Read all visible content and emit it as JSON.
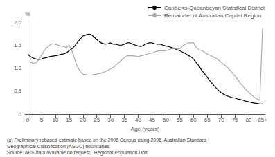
{
  "chart_data": {
    "type": "line",
    "xlabel": "Age (years)",
    "ylabel": "%",
    "xlim": [
      -1,
      86
    ],
    "xticks": [
      0,
      5,
      10,
      15,
      20,
      25,
      30,
      35,
      40,
      45,
      50,
      55,
      60,
      65,
      70,
      75,
      80,
      {
        "value": 85,
        "label": "85+"
      }
    ],
    "ylim": [
      0,
      2.0
    ],
    "yticks": [
      0,
      0.5,
      {
        "value": 1.0,
        "label": "1.0"
      },
      1.5,
      {
        "value": 2.0,
        "label": "2.0"
      }
    ],
    "grid": false,
    "legend": "upper right",
    "annotations": [
      "(a) Preliminary rebased estimate based on the 2006 Census using 2006, Australian Standard",
      "Geographical Classification (ASGC) boundaries.",
      "Source: ABS data available on request,  Regional Population Unit."
    ],
    "series": [
      {
        "name": "Canberra-Queanbeyan Statistical District",
        "color": "#000000",
        "x": [
          0,
          1,
          2,
          3,
          4,
          5,
          6,
          7,
          8,
          9,
          10,
          11,
          12,
          13,
          14,
          15,
          16,
          17,
          18,
          19,
          20,
          21,
          22,
          23,
          24,
          25,
          26,
          27,
          28,
          29,
          30,
          31,
          32,
          33,
          34,
          35,
          36,
          37,
          38,
          39,
          40,
          41,
          42,
          43,
          44,
          45,
          46,
          47,
          48,
          49,
          50,
          51,
          52,
          53,
          54,
          55,
          56,
          57,
          58,
          59,
          60,
          61,
          62,
          63,
          64,
          65,
          66,
          67,
          68,
          69,
          70,
          71,
          72,
          73,
          74,
          75,
          76,
          77,
          78,
          79,
          80,
          81,
          82,
          83,
          84,
          85
        ],
        "values": [
          1.3,
          1.25,
          1.22,
          1.2,
          1.18,
          1.2,
          1.22,
          1.23,
          1.25,
          1.26,
          1.27,
          1.28,
          1.3,
          1.31,
          1.33,
          1.38,
          1.42,
          1.48,
          1.56,
          1.63,
          1.7,
          1.72,
          1.74,
          1.73,
          1.68,
          1.62,
          1.57,
          1.54,
          1.52,
          1.53,
          1.55,
          1.52,
          1.52,
          1.5,
          1.5,
          1.52,
          1.55,
          1.55,
          1.52,
          1.5,
          1.48,
          1.47,
          1.5,
          1.53,
          1.55,
          1.55,
          1.53,
          1.52,
          1.52,
          1.5,
          1.48,
          1.47,
          1.45,
          1.43,
          1.4,
          1.38,
          1.35,
          1.32,
          1.28,
          1.25,
          1.2,
          1.12,
          1.05,
          0.95,
          0.88,
          0.8,
          0.72,
          0.65,
          0.58,
          0.52,
          0.47,
          0.43,
          0.4,
          0.38,
          0.36,
          0.35,
          0.33,
          0.32,
          0.3,
          0.28,
          0.27,
          0.25,
          0.24,
          0.23,
          0.22,
          0.22
        ]
      },
      {
        "name": "Remainder of Australian Capital Region",
        "color": "#aaaaaa",
        "x": [
          0,
          1,
          2,
          3,
          4,
          5,
          6,
          7,
          8,
          9,
          10,
          11,
          12,
          13,
          14,
          15,
          16,
          17,
          18,
          19,
          20,
          21,
          22,
          23,
          24,
          25,
          26,
          27,
          28,
          29,
          30,
          31,
          32,
          33,
          34,
          35,
          36,
          37,
          38,
          39,
          40,
          41,
          42,
          43,
          44,
          45,
          46,
          47,
          48,
          49,
          50,
          51,
          52,
          53,
          54,
          55,
          56,
          57,
          58,
          59,
          60,
          61,
          62,
          63,
          64,
          65,
          66,
          67,
          68,
          69,
          70,
          71,
          72,
          73,
          74,
          75,
          76,
          77,
          78,
          79,
          80,
          81,
          82,
          83,
          84,
          85
        ],
        "values": [
          1.15,
          1.13,
          1.1,
          1.12,
          1.18,
          1.28,
          1.38,
          1.45,
          1.5,
          1.53,
          1.52,
          1.5,
          1.48,
          1.47,
          1.45,
          1.5,
          1.38,
          1.2,
          1.03,
          0.93,
          0.87,
          0.86,
          0.85,
          0.85,
          0.86,
          0.87,
          0.88,
          0.9,
          0.92,
          0.95,
          0.98,
          1.02,
          1.07,
          1.12,
          1.18,
          1.23,
          1.27,
          1.27,
          1.27,
          1.26,
          1.25,
          1.27,
          1.28,
          1.3,
          1.32,
          1.33,
          1.35,
          1.37,
          1.38,
          1.37,
          1.38,
          1.4,
          1.42,
          1.43,
          1.42,
          1.42,
          1.48,
          1.52,
          1.55,
          1.55,
          1.55,
          1.45,
          1.4,
          1.38,
          1.35,
          1.3,
          1.28,
          1.25,
          1.22,
          1.18,
          1.13,
          1.08,
          1.03,
          0.97,
          0.9,
          0.83,
          0.75,
          0.67,
          0.6,
          0.53,
          0.48,
          0.42,
          0.37,
          0.33,
          0.3,
          1.87
        ]
      }
    ]
  }
}
